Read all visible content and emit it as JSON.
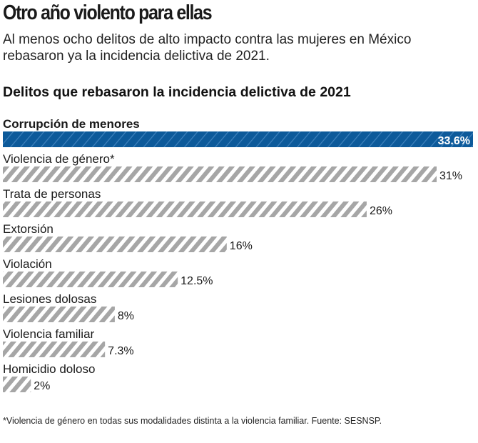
{
  "header": {
    "title": "Otro año violento para ellas",
    "subtitle": "Al menos ocho delitos de alto impacto contra las mujeres en México rebasaron ya la incidencia delictiva de 2021."
  },
  "chart_data": {
    "type": "bar",
    "orientation": "horizontal",
    "title": "Delitos que rebasaron la incidencia delictiva de 2021",
    "categories": [
      "Corrupción de menores",
      "Violencia de género*",
      "Trata de personas",
      "Extorsión",
      "Violación",
      "Lesiones dolosas",
      "Violencia familiar",
      "Homicidio doloso"
    ],
    "values": [
      33.6,
      31,
      26,
      16,
      12.5,
      8,
      7.3,
      2
    ],
    "labels": [
      "33.6%",
      "31%",
      "26%",
      "16%",
      "12.5%",
      "8%",
      "7.3%",
      "2%"
    ],
    "unit": "%",
    "xlim": [
      0,
      33.6
    ],
    "highlight_index": 0,
    "colors": {
      "highlight": "#0d5a9a",
      "bar": "#a6a6a6",
      "text": "#1a1a1a"
    },
    "grid": false
  },
  "footnote": "*Violencia de género en todas sus modalidades distinta a la violencia familiar. Fuente: SESNSP."
}
